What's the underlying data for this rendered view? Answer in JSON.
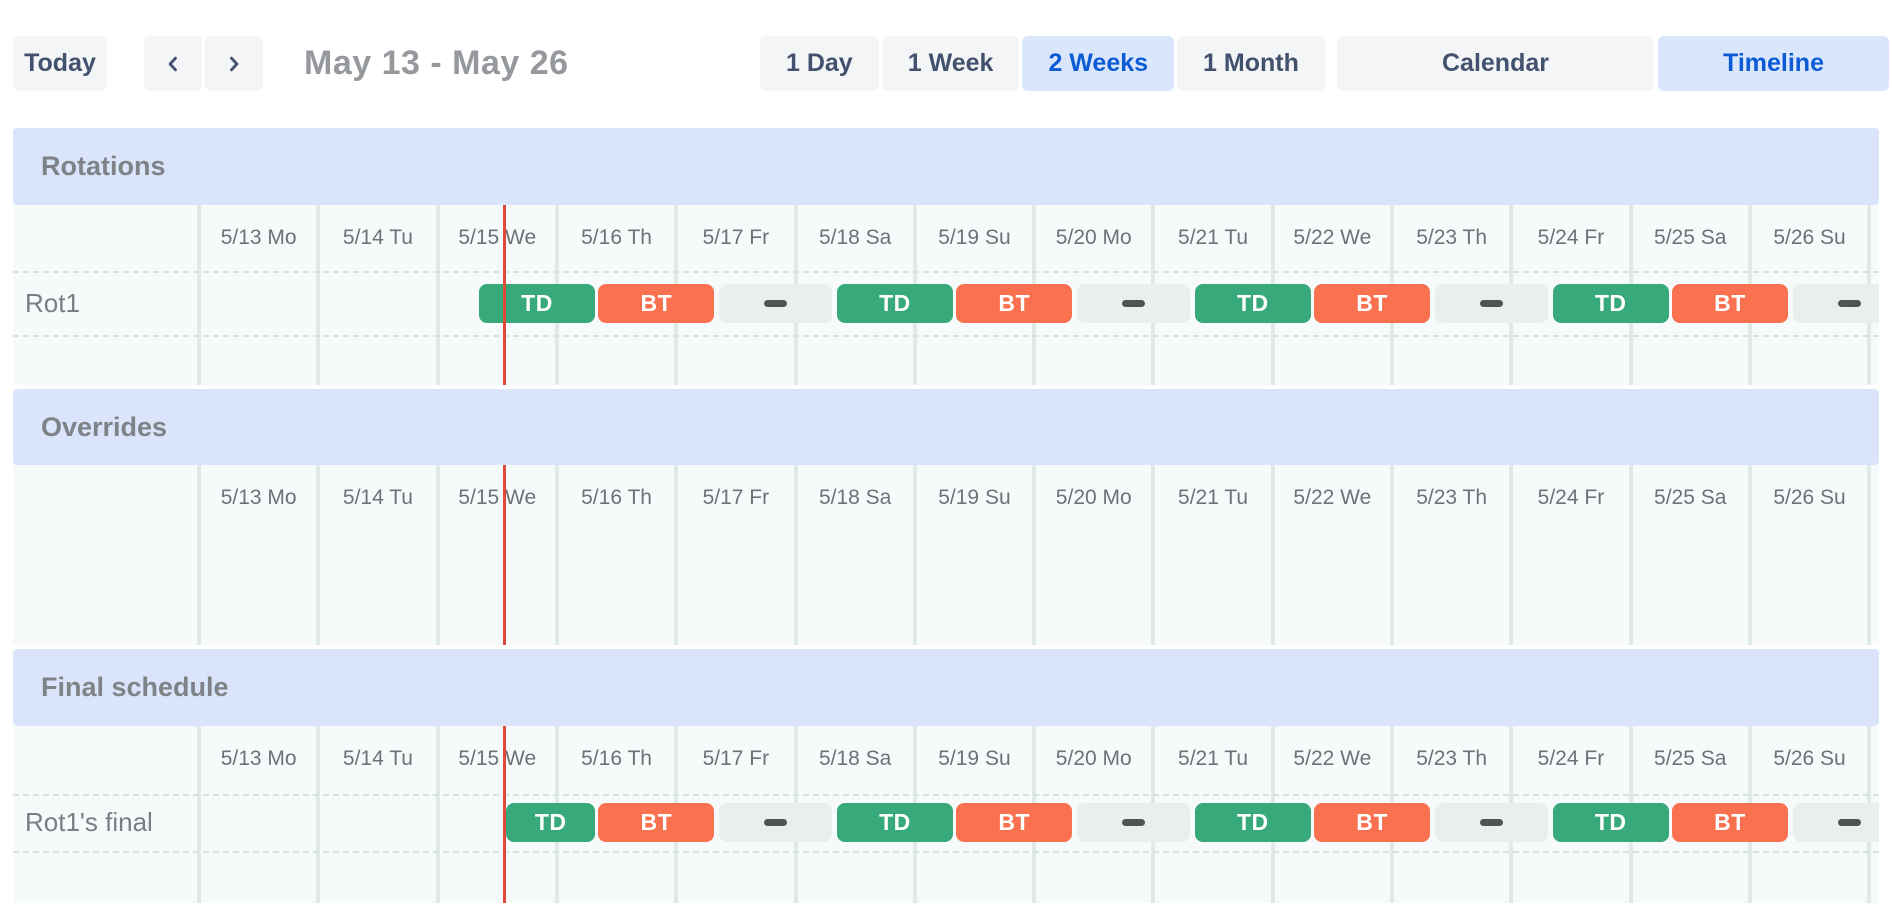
{
  "toolbar": {
    "today_label": "Today",
    "prev_icon": "chevron-left",
    "next_icon": "chevron-right",
    "date_range_title": "May 13 - May 26",
    "view_options": [
      {
        "label": "1 Day",
        "selected": false
      },
      {
        "label": "1 Week",
        "selected": false
      },
      {
        "label": "2 Weeks",
        "selected": true
      },
      {
        "label": "1 Month",
        "selected": false
      }
    ],
    "mode_options": [
      {
        "label": "Calendar",
        "selected": false
      },
      {
        "label": "Timeline",
        "selected": true
      }
    ]
  },
  "timeline": {
    "days": [
      "5/13 Mo",
      "5/14 Tu",
      "5/15 We",
      "5/16 Th",
      "5/17 Fr",
      "5/18 Sa",
      "5/19 Su",
      "5/20 Mo",
      "5/21 Tu",
      "5/22 We",
      "5/23 Th",
      "5/24 Fr",
      "5/25 Sa",
      "5/26 Su"
    ],
    "now_marker": {
      "day": "5/15",
      "hour": 13.5
    },
    "colors": {
      "shift_td": "#37a97b",
      "shift_bt": "#f9714f",
      "gap_segment_bg": "#e9efed",
      "gap_dash": "#4f5356",
      "now_line": "#dd4b38",
      "section_header_bg": "#dae5fc",
      "grid_bg": "#f6fafa",
      "selected_button_bg": "#d9e6fc",
      "selected_button_text": "#0b5bd5"
    }
  },
  "sections": [
    {
      "title": "Rotations",
      "rows": [
        {
          "label": "Rot1",
          "shifts": [
            {
              "type": "shift",
              "label": "TD",
              "start": {
                "day": "5/15",
                "hour": 8
              },
              "end": {
                "day": "5/16",
                "hour": 8
              }
            },
            {
              "type": "shift",
              "label": "BT",
              "start": {
                "day": "5/16",
                "hour": 8
              },
              "end": {
                "day": "5/17",
                "hour": 8
              }
            },
            {
              "type": "gap",
              "start": {
                "day": "5/17",
                "hour": 8
              },
              "end": {
                "day": "5/18",
                "hour": 8
              }
            },
            {
              "type": "shift",
              "label": "TD",
              "start": {
                "day": "5/18",
                "hour": 8
              },
              "end": {
                "day": "5/19",
                "hour": 8
              }
            },
            {
              "type": "shift",
              "label": "BT",
              "start": {
                "day": "5/19",
                "hour": 8
              },
              "end": {
                "day": "5/20",
                "hour": 8
              }
            },
            {
              "type": "gap",
              "start": {
                "day": "5/20",
                "hour": 8
              },
              "end": {
                "day": "5/21",
                "hour": 8
              }
            },
            {
              "type": "shift",
              "label": "TD",
              "start": {
                "day": "5/21",
                "hour": 8
              },
              "end": {
                "day": "5/22",
                "hour": 8
              }
            },
            {
              "type": "shift",
              "label": "BT",
              "start": {
                "day": "5/22",
                "hour": 8
              },
              "end": {
                "day": "5/23",
                "hour": 8
              }
            },
            {
              "type": "gap",
              "start": {
                "day": "5/23",
                "hour": 8
              },
              "end": {
                "day": "5/24",
                "hour": 8
              }
            },
            {
              "type": "shift",
              "label": "TD",
              "start": {
                "day": "5/24",
                "hour": 8
              },
              "end": {
                "day": "5/25",
                "hour": 8
              }
            },
            {
              "type": "shift",
              "label": "BT",
              "start": {
                "day": "5/25",
                "hour": 8
              },
              "end": {
                "day": "5/26",
                "hour": 8
              }
            },
            {
              "type": "gap",
              "start": {
                "day": "5/26",
                "hour": 8
              },
              "end": {
                "day": "5/26",
                "hour": 32
              }
            }
          ]
        }
      ]
    },
    {
      "title": "Overrides",
      "rows": []
    },
    {
      "title": "Final schedule",
      "rows": [
        {
          "label": "Rot1's final",
          "shifts": [
            {
              "type": "shift",
              "label": "TD",
              "start": {
                "day": "5/15",
                "hour": 13.5
              },
              "end": {
                "day": "5/16",
                "hour": 8
              }
            },
            {
              "type": "shift",
              "label": "BT",
              "start": {
                "day": "5/16",
                "hour": 8
              },
              "end": {
                "day": "5/17",
                "hour": 8
              }
            },
            {
              "type": "gap",
              "start": {
                "day": "5/17",
                "hour": 8
              },
              "end": {
                "day": "5/18",
                "hour": 8
              }
            },
            {
              "type": "shift",
              "label": "TD",
              "start": {
                "day": "5/18",
                "hour": 8
              },
              "end": {
                "day": "5/19",
                "hour": 8
              }
            },
            {
              "type": "shift",
              "label": "BT",
              "start": {
                "day": "5/19",
                "hour": 8
              },
              "end": {
                "day": "5/20",
                "hour": 8
              }
            },
            {
              "type": "gap",
              "start": {
                "day": "5/20",
                "hour": 8
              },
              "end": {
                "day": "5/21",
                "hour": 8
              }
            },
            {
              "type": "shift",
              "label": "TD",
              "start": {
                "day": "5/21",
                "hour": 8
              },
              "end": {
                "day": "5/22",
                "hour": 8
              }
            },
            {
              "type": "shift",
              "label": "BT",
              "start": {
                "day": "5/22",
                "hour": 8
              },
              "end": {
                "day": "5/23",
                "hour": 8
              }
            },
            {
              "type": "gap",
              "start": {
                "day": "5/23",
                "hour": 8
              },
              "end": {
                "day": "5/24",
                "hour": 8
              }
            },
            {
              "type": "shift",
              "label": "TD",
              "start": {
                "day": "5/24",
                "hour": 8
              },
              "end": {
                "day": "5/25",
                "hour": 8
              }
            },
            {
              "type": "shift",
              "label": "BT",
              "start": {
                "day": "5/25",
                "hour": 8
              },
              "end": {
                "day": "5/26",
                "hour": 8
              }
            },
            {
              "type": "gap",
              "start": {
                "day": "5/26",
                "hour": 8
              },
              "end": {
                "day": "5/26",
                "hour": 32
              }
            }
          ]
        }
      ]
    }
  ]
}
